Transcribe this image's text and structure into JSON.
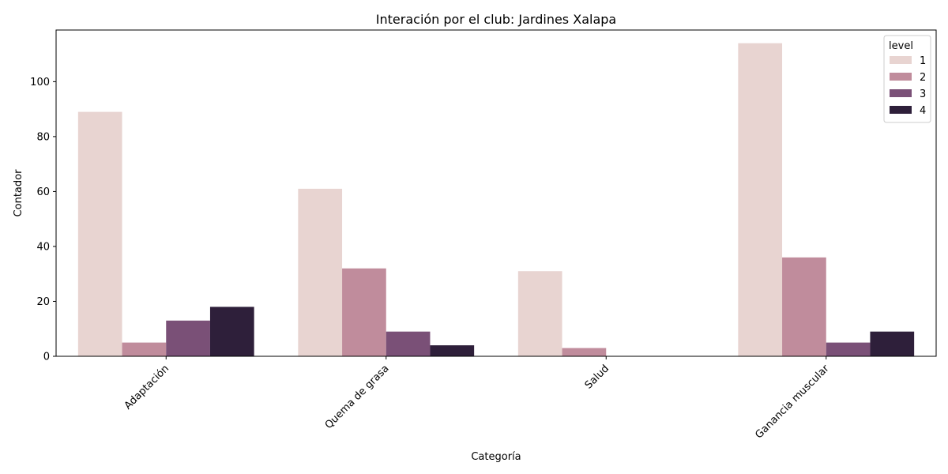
{
  "chart_data": {
    "type": "bar",
    "title": "Interación por el club: Jardines Xalapa",
    "xlabel": "Categoría",
    "ylabel": "Contador",
    "categories": [
      "Adaptación",
      "Quema de grasa",
      "Salud",
      "Ganancia muscular"
    ],
    "series": [
      {
        "name": "1",
        "color": "#e8d4d1",
        "values": [
          89,
          61,
          31,
          114
        ]
      },
      {
        "name": "2",
        "color": "#c08c9c",
        "values": [
          5,
          32,
          3,
          36
        ]
      },
      {
        "name": "3",
        "color": "#7a5077",
        "values": [
          13,
          9,
          0,
          5
        ]
      },
      {
        "name": "4",
        "color": "#2e1f3a",
        "values": [
          18,
          4,
          0,
          9
        ]
      }
    ],
    "ylim": [
      0,
      118.8
    ],
    "yticks": [
      0,
      20,
      40,
      60,
      80,
      100
    ],
    "legend": {
      "title": "level",
      "position": "top-right"
    },
    "grid": false
  }
}
